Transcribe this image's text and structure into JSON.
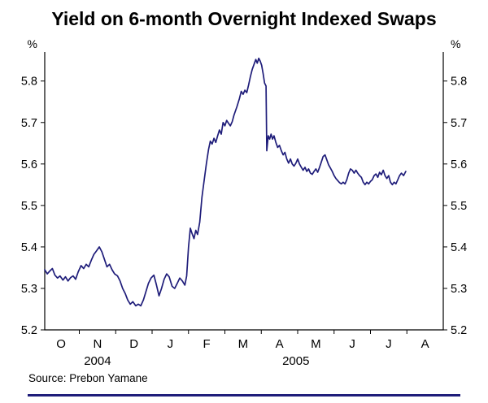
{
  "header": {
    "title": "Yield on 6-month Overnight Indexed Swaps"
  },
  "footer": {
    "source": "Source: Prebon Yamane"
  },
  "chart_data": {
    "type": "line",
    "title": "Yield on 6-month Overnight Indexed Swaps",
    "unit_label_left": "%",
    "unit_label_right": "%",
    "line_color": "#1f1d7a",
    "axis_color": "#000000",
    "rule_color": "#1f1d7a",
    "xlim": [
      0,
      10.95
    ],
    "ylim": [
      5.2,
      5.87
    ],
    "y_ticks": [
      5.2,
      5.3,
      5.4,
      5.5,
      5.6,
      5.7,
      5.8
    ],
    "x_tick_boundaries": [
      0.95,
      1.95,
      2.95,
      3.95,
      4.95,
      5.95,
      6.95,
      7.95,
      8.95,
      9.95
    ],
    "x_labels": [
      {
        "label": "O",
        "x": 0.45
      },
      {
        "label": "N",
        "x": 1.45
      },
      {
        "label": "D",
        "x": 2.45
      },
      {
        "label": "J",
        "x": 3.45
      },
      {
        "label": "F",
        "x": 4.45
      },
      {
        "label": "M",
        "x": 5.45
      },
      {
        "label": "A",
        "x": 6.45
      },
      {
        "label": "M",
        "x": 7.45
      },
      {
        "label": "J",
        "x": 8.45
      },
      {
        "label": "J",
        "x": 9.45
      },
      {
        "label": "A",
        "x": 10.45
      }
    ],
    "year_labels": [
      {
        "label": "2004",
        "x": 1.45
      },
      {
        "label": "2005",
        "x": 6.9
      }
    ],
    "source": "Source: Prebon Yamane",
    "series": [
      {
        "points": [
          [
            0.0,
            5.345
          ],
          [
            0.07,
            5.335
          ],
          [
            0.14,
            5.342
          ],
          [
            0.21,
            5.348
          ],
          [
            0.28,
            5.332
          ],
          [
            0.35,
            5.325
          ],
          [
            0.42,
            5.33
          ],
          [
            0.5,
            5.32
          ],
          [
            0.57,
            5.328
          ],
          [
            0.64,
            5.318
          ],
          [
            0.71,
            5.326
          ],
          [
            0.78,
            5.33
          ],
          [
            0.85,
            5.322
          ],
          [
            0.92,
            5.34
          ],
          [
            1.0,
            5.355
          ],
          [
            1.07,
            5.348
          ],
          [
            1.14,
            5.358
          ],
          [
            1.21,
            5.352
          ],
          [
            1.28,
            5.368
          ],
          [
            1.35,
            5.382
          ],
          [
            1.42,
            5.39
          ],
          [
            1.5,
            5.4
          ],
          [
            1.57,
            5.388
          ],
          [
            1.64,
            5.37
          ],
          [
            1.71,
            5.352
          ],
          [
            1.78,
            5.358
          ],
          [
            1.85,
            5.345
          ],
          [
            1.92,
            5.335
          ],
          [
            2.0,
            5.33
          ],
          [
            2.07,
            5.318
          ],
          [
            2.14,
            5.3
          ],
          [
            2.21,
            5.288
          ],
          [
            2.28,
            5.272
          ],
          [
            2.35,
            5.262
          ],
          [
            2.42,
            5.268
          ],
          [
            2.5,
            5.258
          ],
          [
            2.57,
            5.262
          ],
          [
            2.64,
            5.258
          ],
          [
            2.71,
            5.272
          ],
          [
            2.78,
            5.292
          ],
          [
            2.85,
            5.312
          ],
          [
            2.92,
            5.325
          ],
          [
            3.0,
            5.332
          ],
          [
            3.07,
            5.308
          ],
          [
            3.14,
            5.282
          ],
          [
            3.21,
            5.3
          ],
          [
            3.28,
            5.322
          ],
          [
            3.35,
            5.335
          ],
          [
            3.42,
            5.328
          ],
          [
            3.5,
            5.305
          ],
          [
            3.57,
            5.3
          ],
          [
            3.64,
            5.312
          ],
          [
            3.71,
            5.325
          ],
          [
            3.78,
            5.318
          ],
          [
            3.85,
            5.308
          ],
          [
            3.9,
            5.33
          ],
          [
            3.95,
            5.4
          ],
          [
            4.0,
            5.445
          ],
          [
            4.05,
            5.432
          ],
          [
            4.1,
            5.42
          ],
          [
            4.15,
            5.44
          ],
          [
            4.2,
            5.43
          ],
          [
            4.26,
            5.46
          ],
          [
            4.32,
            5.52
          ],
          [
            4.38,
            5.56
          ],
          [
            4.44,
            5.6
          ],
          [
            4.5,
            5.635
          ],
          [
            4.55,
            5.655
          ],
          [
            4.6,
            5.648
          ],
          [
            4.65,
            5.662
          ],
          [
            4.7,
            5.652
          ],
          [
            4.75,
            5.668
          ],
          [
            4.8,
            5.682
          ],
          [
            4.85,
            5.672
          ],
          [
            4.9,
            5.7
          ],
          [
            4.95,
            5.692
          ],
          [
            5.0,
            5.705
          ],
          [
            5.05,
            5.698
          ],
          [
            5.1,
            5.692
          ],
          [
            5.15,
            5.702
          ],
          [
            5.2,
            5.718
          ],
          [
            5.28,
            5.738
          ],
          [
            5.35,
            5.758
          ],
          [
            5.4,
            5.775
          ],
          [
            5.45,
            5.768
          ],
          [
            5.5,
            5.778
          ],
          [
            5.55,
            5.772
          ],
          [
            5.6,
            5.79
          ],
          [
            5.65,
            5.81
          ],
          [
            5.7,
            5.828
          ],
          [
            5.75,
            5.84
          ],
          [
            5.8,
            5.852
          ],
          [
            5.84,
            5.843
          ],
          [
            5.88,
            5.855
          ],
          [
            5.92,
            5.848
          ],
          [
            5.96,
            5.838
          ],
          [
            6.0,
            5.818
          ],
          [
            6.04,
            5.795
          ],
          [
            6.08,
            5.788
          ],
          [
            6.1,
            5.632
          ],
          [
            6.14,
            5.668
          ],
          [
            6.18,
            5.66
          ],
          [
            6.22,
            5.672
          ],
          [
            6.26,
            5.66
          ],
          [
            6.3,
            5.668
          ],
          [
            6.35,
            5.652
          ],
          [
            6.4,
            5.64
          ],
          [
            6.45,
            5.645
          ],
          [
            6.5,
            5.632
          ],
          [
            6.55,
            5.622
          ],
          [
            6.6,
            5.628
          ],
          [
            6.65,
            5.612
          ],
          [
            6.7,
            5.602
          ],
          [
            6.75,
            5.612
          ],
          [
            6.8,
            5.6
          ],
          [
            6.85,
            5.595
          ],
          [
            6.9,
            5.602
          ],
          [
            6.95,
            5.612
          ],
          [
            7.0,
            5.6
          ],
          [
            7.05,
            5.592
          ],
          [
            7.1,
            5.585
          ],
          [
            7.15,
            5.592
          ],
          [
            7.2,
            5.582
          ],
          [
            7.25,
            5.588
          ],
          [
            7.3,
            5.578
          ],
          [
            7.35,
            5.575
          ],
          [
            7.4,
            5.582
          ],
          [
            7.45,
            5.588
          ],
          [
            7.5,
            5.58
          ],
          [
            7.55,
            5.592
          ],
          [
            7.6,
            5.605
          ],
          [
            7.65,
            5.618
          ],
          [
            7.7,
            5.622
          ],
          [
            7.75,
            5.61
          ],
          [
            7.8,
            5.598
          ],
          [
            7.85,
            5.59
          ],
          [
            7.9,
            5.582
          ],
          [
            7.95,
            5.572
          ],
          [
            8.0,
            5.565
          ],
          [
            8.05,
            5.56
          ],
          [
            8.1,
            5.555
          ],
          [
            8.15,
            5.552
          ],
          [
            8.2,
            5.556
          ],
          [
            8.25,
            5.552
          ],
          [
            8.3,
            5.562
          ],
          [
            8.35,
            5.578
          ],
          [
            8.4,
            5.588
          ],
          [
            8.45,
            5.585
          ],
          [
            8.5,
            5.578
          ],
          [
            8.55,
            5.585
          ],
          [
            8.6,
            5.578
          ],
          [
            8.65,
            5.572
          ],
          [
            8.7,
            5.568
          ],
          [
            8.75,
            5.556
          ],
          [
            8.8,
            5.55
          ],
          [
            8.85,
            5.556
          ],
          [
            8.9,
            5.552
          ],
          [
            8.95,
            5.558
          ],
          [
            9.0,
            5.562
          ],
          [
            9.05,
            5.572
          ],
          [
            9.1,
            5.576
          ],
          [
            9.15,
            5.568
          ],
          [
            9.2,
            5.58
          ],
          [
            9.25,
            5.574
          ],
          [
            9.3,
            5.585
          ],
          [
            9.35,
            5.572
          ],
          [
            9.4,
            5.565
          ],
          [
            9.45,
            5.572
          ],
          [
            9.5,
            5.556
          ],
          [
            9.55,
            5.55
          ],
          [
            9.6,
            5.556
          ],
          [
            9.65,
            5.552
          ],
          [
            9.7,
            5.562
          ],
          [
            9.75,
            5.572
          ],
          [
            9.8,
            5.578
          ],
          [
            9.86,
            5.572
          ],
          [
            9.92,
            5.582
          ]
        ]
      }
    ]
  }
}
